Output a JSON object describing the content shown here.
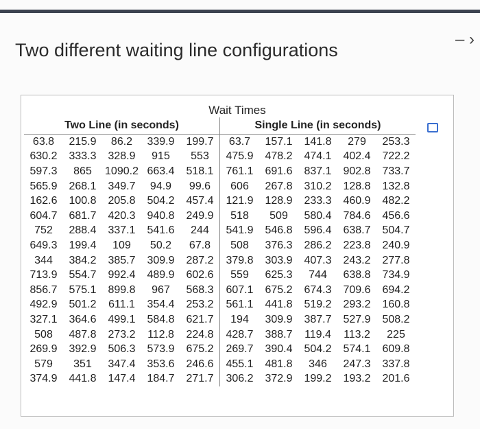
{
  "header": {
    "title": "Two different waiting line configurations"
  },
  "table": {
    "caption": "Wait Times",
    "headers": [
      "Two Line (in seconds)",
      "Single Line (in seconds)"
    ],
    "rows": [
      [
        "63.8",
        "215.9",
        "86.2",
        "339.9",
        "199.7",
        "63.7",
        "157.1",
        "141.8",
        "279",
        "253.3"
      ],
      [
        "630.2",
        "333.3",
        "328.9",
        "915",
        "553",
        "475.9",
        "478.2",
        "474.1",
        "402.4",
        "722.2"
      ],
      [
        "597.3",
        "865",
        "1090.2",
        "663.4",
        "518.1",
        "761.1",
        "691.6",
        "837.1",
        "902.8",
        "733.7"
      ],
      [
        "565.9",
        "268.1",
        "349.7",
        "94.9",
        "99.6",
        "606",
        "267.8",
        "310.2",
        "128.8",
        "132.8"
      ],
      [
        "162.6",
        "100.8",
        "205.8",
        "504.2",
        "457.4",
        "121.9",
        "128.9",
        "233.3",
        "460.9",
        "482.2"
      ],
      [
        "604.7",
        "681.7",
        "420.3",
        "940.8",
        "249.9",
        "518",
        "509",
        "580.4",
        "784.6",
        "456.6"
      ],
      [
        "752",
        "288.4",
        "337.1",
        "541.6",
        "244",
        "541.9",
        "546.8",
        "596.4",
        "638.7",
        "504.7"
      ],
      [
        "649.3",
        "199.4",
        "109",
        "50.2",
        "67.8",
        "508",
        "376.3",
        "286.2",
        "223.8",
        "240.9"
      ],
      [
        "344",
        "384.2",
        "385.7",
        "309.9",
        "287.2",
        "379.8",
        "303.9",
        "407.3",
        "243.2",
        "277.8"
      ],
      [
        "713.9",
        "554.7",
        "992.4",
        "489.9",
        "602.6",
        "559",
        "625.3",
        "744",
        "638.8",
        "734.9"
      ],
      [
        "856.7",
        "575.1",
        "899.8",
        "967",
        "568.3",
        "607.1",
        "675.2",
        "674.3",
        "709.6",
        "694.2"
      ],
      [
        "492.9",
        "501.2",
        "611.1",
        "354.4",
        "253.2",
        "561.1",
        "441.8",
        "519.2",
        "293.2",
        "160.8"
      ],
      [
        "327.1",
        "364.6",
        "499.1",
        "584.8",
        "621.7",
        "194",
        "309.9",
        "387.7",
        "527.9",
        "508.2"
      ],
      [
        "508",
        "487.8",
        "273.2",
        "112.8",
        "224.8",
        "428.7",
        "388.7",
        "119.4",
        "113.2",
        "225"
      ],
      [
        "269.9",
        "392.9",
        "506.3",
        "573.9",
        "675.2",
        "269.7",
        "390.4",
        "504.2",
        "574.1",
        "609.8"
      ],
      [
        "579",
        "351",
        "347.4",
        "353.6",
        "246.6",
        "455.1",
        "481.8",
        "346",
        "247.3",
        "337.8"
      ],
      [
        "374.9",
        "441.8",
        "147.4",
        "184.7",
        "271.7",
        "306.2",
        "372.9",
        "199.2",
        "193.2",
        "201.6"
      ]
    ]
  }
}
